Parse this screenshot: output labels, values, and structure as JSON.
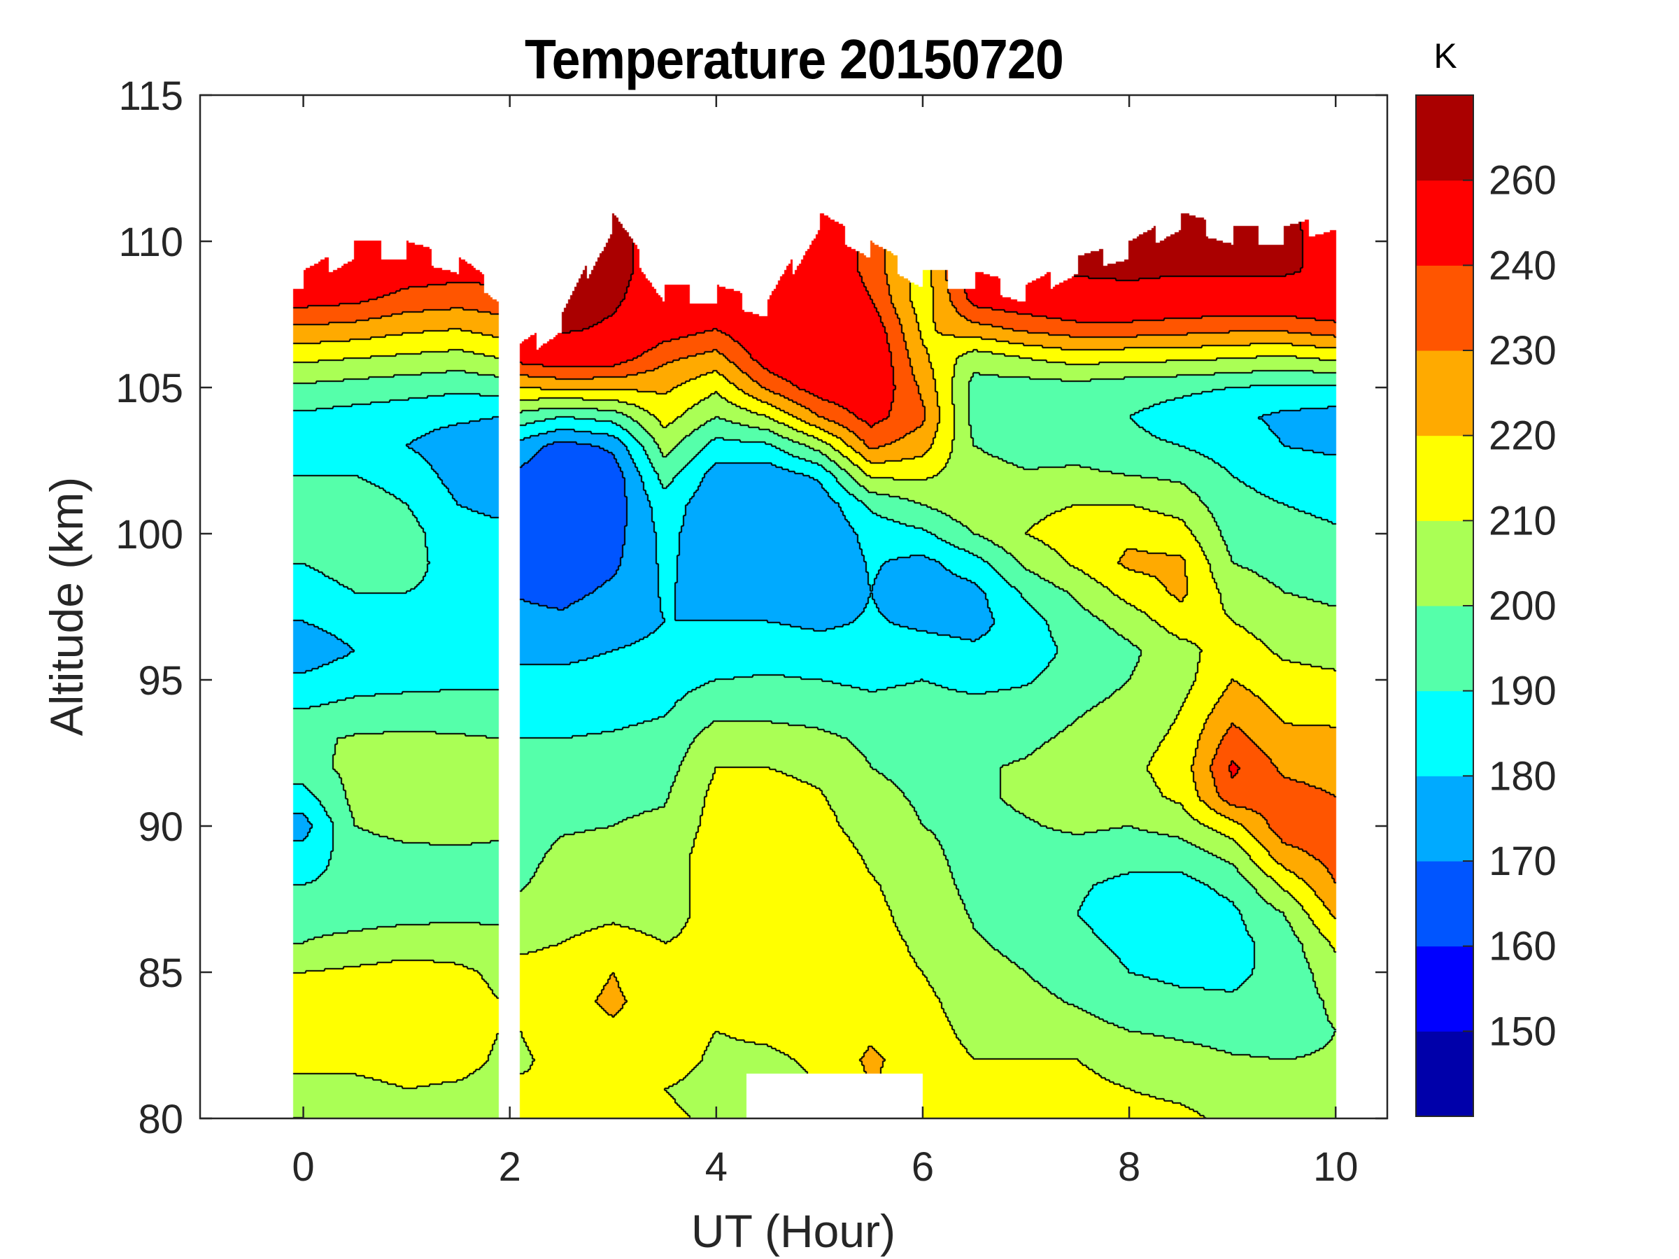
{
  "chart_data": {
    "type": "contourf",
    "title": "Temperature 20150720",
    "xlabel": "UT (Hour)",
    "ylabel": "Altitude (km)",
    "xlim": [
      -1,
      10.5
    ],
    "ylim": [
      80,
      115
    ],
    "xticks": [
      0,
      2,
      4,
      6,
      8,
      10
    ],
    "xtick_labels": [
      "0",
      "2",
      "4",
      "6",
      "8",
      "10"
    ],
    "yticks": [
      80,
      85,
      90,
      95,
      100,
      105,
      110,
      115
    ],
    "ytick_labels": [
      "80",
      "85",
      "90",
      "95",
      "100",
      "105",
      "110",
      "115"
    ],
    "colorbar": {
      "unit_label": "K",
      "range": [
        140,
        270
      ],
      "band_boundaries": [
        140,
        150,
        160,
        170,
        180,
        190,
        200,
        210,
        220,
        230,
        240,
        260,
        270
      ],
      "band_colors": [
        "#0000aa",
        "#0000ff",
        "#0055ff",
        "#00aaff",
        "#00ffff",
        "#55ffaa",
        "#aaff55",
        "#ffff00",
        "#ffaa00",
        "#ff5500",
        "#ff0000",
        "#aa0000"
      ],
      "tick_values": [
        150,
        160,
        170,
        180,
        190,
        200,
        210,
        220,
        230,
        240,
        260
      ],
      "tick_labels": [
        "150",
        "160",
        "170",
        "180",
        "190",
        "200",
        "210",
        "220",
        "230",
        "240",
        "260"
      ]
    },
    "grid": false,
    "contour_line_color": "#000000",
    "field": {
      "x_hours": [
        0,
        0.5,
        1,
        1.5,
        1.9,
        2.1,
        2.5,
        3,
        3.5,
        4,
        4.5,
        5,
        5.5,
        6,
        6.5,
        7,
        7.5,
        8,
        8.5,
        9,
        9.5,
        10
      ],
      "altitude_km": [
        80,
        81,
        82,
        83,
        84,
        85,
        86,
        87,
        88,
        89,
        90,
        91,
        92,
        93,
        94,
        95,
        96,
        97,
        98,
        99,
        100,
        101,
        102,
        103,
        104,
        105,
        106,
        107,
        108,
        109,
        110,
        111
      ],
      "data_gap_hours": [
        1.9,
        2.1
      ],
      "top_altitude_km": [
        109,
        110,
        110,
        109.5,
        108.5,
        106.5,
        107.5,
        111,
        108.5,
        108.5,
        108,
        111,
        110,
        109,
        109,
        108.5,
        109.5,
        110,
        111,
        110.5,
        110.5,
        111
      ],
      "bottom_gap": {
        "hours": [
          4.3,
          6.0
        ],
        "top_altitude_km": 81.5
      },
      "temperature_K": [
        [
          210,
          208,
          212,
          213,
          212,
          210,
          200,
          198,
          190,
          184,
          176,
          186,
          196,
          198,
          190,
          182,
          174,
          180,
          186,
          190,
          194,
          195,
          190,
          184,
          188,
          198,
          212,
          228,
          244,
          256,
          262,
          262
        ],
        [
          205,
          206,
          214,
          216,
          216,
          212,
          202,
          197,
          193,
          195,
          200,
          203,
          203,
          201,
          193,
          186,
          180,
          184,
          190,
          194,
          196,
          195,
          190,
          184,
          186,
          196,
          210,
          226,
          242,
          252,
          258,
          258
        ],
        [
          203,
          210,
          216,
          217,
          217,
          214,
          205,
          197,
          195,
          197,
          204,
          206,
          205,
          202,
          194,
          187,
          184,
          186,
          190,
          193,
          194,
          190,
          186,
          180,
          184,
          194,
          208,
          222,
          236,
          246,
          252,
          252
        ],
        [
          200,
          208,
          215,
          216,
          214,
          212,
          205,
          198,
          196,
          198,
          204,
          205,
          204,
          201,
          194,
          188,
          184,
          186,
          188,
          186,
          183,
          180,
          176,
          174,
          182,
          192,
          206,
          220,
          234,
          244,
          250,
          250
        ],
        [
          202,
          205,
          208,
          210,
          210,
          208,
          203,
          198,
          195,
          197,
          203,
          205,
          203,
          200,
          194,
          188,
          184,
          186,
          186,
          184,
          182,
          178,
          174,
          172,
          180,
          194,
          210,
          224,
          236,
          244,
          248,
          248
        ],
        [
          218,
          212,
          208,
          210,
          212,
          213,
          208,
          203,
          199,
          197,
          195,
          195,
          193,
          190,
          186,
          182,
          178,
          173,
          169,
          167,
          165,
          166,
          168,
          176,
          196,
          220,
          244,
          256,
          262,
          262,
          262,
          262
        ],
        [
          212,
          210,
          214,
          217,
          216,
          214,
          210,
          206,
          204,
          202,
          199,
          196,
          194,
          190,
          186,
          182,
          178,
          172,
          167,
          164,
          162,
          161,
          160,
          166,
          190,
          222,
          248,
          262,
          266,
          266,
          266,
          266
        ],
        [
          214,
          212,
          216,
          218,
          222,
          220,
          214,
          208,
          205,
          203,
          200,
          198,
          195,
          191,
          187,
          183,
          180,
          176,
          172,
          168,
          166,
          164,
          164,
          172,
          194,
          222,
          246,
          258,
          262,
          264,
          264,
          264
        ],
        [
          212,
          210,
          215,
          216,
          214,
          212,
          210,
          206,
          205,
          204,
          202,
          199,
          196,
          193,
          189,
          186,
          182,
          180,
          181,
          182,
          183,
          186,
          194,
          204,
          214,
          222,
          232,
          246,
          252,
          254,
          254,
          254
        ],
        [
          208,
          206,
          208,
          210,
          213,
          214,
          213,
          214,
          215,
          216,
          214,
          213,
          210,
          205,
          197,
          190,
          184,
          180,
          176,
          174,
          173,
          172,
          176,
          186,
          200,
          212,
          226,
          240,
          248,
          250,
          250,
          250
        ],
        [
          205,
          204,
          208,
          212,
          214,
          216,
          217,
          218,
          220,
          220,
          218,
          215,
          210,
          204,
          197,
          191,
          186,
          180,
          175,
          172,
          170,
          170,
          174,
          188,
          210,
          232,
          246,
          252,
          256,
          258,
          258,
          258
        ],
        [
          210,
          210,
          212,
          214,
          213,
          212,
          213,
          215,
          217,
          218,
          214,
          211,
          207,
          202,
          196,
          190,
          184,
          178,
          174,
          171,
          170,
          173,
          182,
          204,
          230,
          246,
          254,
          256,
          254,
          252,
          252,
          252
        ],
        [
          215,
          220,
          222,
          218,
          214,
          212,
          212,
          212,
          211,
          208,
          204,
          202,
          200,
          198,
          193,
          188,
          184,
          181,
          180,
          181,
          184,
          192,
          212,
          232,
          244,
          250,
          252,
          248,
          240,
          236,
          236,
          236
        ],
        [
          216,
          216,
          214,
          213,
          212,
          210,
          209,
          207,
          205,
          203,
          200,
          199,
          198,
          197,
          194,
          190,
          184,
          178,
          174,
          177,
          188,
          200,
          212,
          224,
          232,
          228,
          222,
          218,
          214,
          214,
          214,
          214
        ],
        [
          214,
          212,
          210,
          208,
          206,
          204,
          201,
          199,
          197,
          196,
          197,
          198,
          199,
          197,
          193,
          187,
          182,
          176,
          177,
          186,
          200,
          208,
          204,
          200,
          196,
          196,
          204,
          226,
          244,
          250,
          250,
          250
        ],
        [
          215,
          213,
          210,
          206,
          203,
          200,
          197,
          195,
          194,
          195,
          199,
          202,
          201,
          198,
          194,
          189,
          185,
          186,
          192,
          202,
          210,
          207,
          201,
          196,
          193,
          195,
          210,
          232,
          248,
          255,
          255,
          255
        ],
        [
          214,
          212,
          210,
          204,
          199,
          195,
          192,
          190,
          191,
          195,
          202,
          206,
          205,
          202,
          199,
          195,
          193,
          196,
          202,
          212,
          216,
          210,
          202,
          196,
          193,
          196,
          214,
          236,
          252,
          262,
          262,
          262
        ],
        [
          213,
          210,
          207,
          200,
          194,
          190,
          188,
          186,
          188,
          193,
          200,
          206,
          208,
          206,
          203,
          200,
          198,
          204,
          214,
          222,
          218,
          210,
          200,
          192,
          190,
          194,
          212,
          236,
          252,
          264,
          266,
          266
        ],
        [
          212,
          208,
          204,
          198,
          192,
          188,
          185,
          184,
          187,
          194,
          204,
          212,
          214,
          212,
          210,
          206,
          206,
          216,
          222,
          222,
          214,
          206,
          198,
          190,
          186,
          192,
          212,
          234,
          250,
          262,
          266,
          266
        ],
        [
          208,
          205,
          201,
          196,
          191,
          188,
          187,
          188,
          193,
          203,
          216,
          236,
          242,
          234,
          226,
          220,
          216,
          210,
          206,
          200,
          196,
          193,
          190,
          185,
          182,
          190,
          210,
          232,
          250,
          262,
          266,
          266
        ],
        [
          205,
          204,
          200,
          196,
          194,
          193,
          194,
          200,
          212,
          226,
          236,
          234,
          228,
          222,
          218,
          214,
          208,
          204,
          200,
          196,
          193,
          190,
          186,
          180,
          178,
          188,
          208,
          232,
          250,
          262,
          266,
          266
        ],
        [
          200,
          202,
          201,
          200,
          202,
          206,
          212,
          222,
          230,
          234,
          234,
          230,
          226,
          222,
          217,
          212,
          206,
          202,
          198,
          194,
          191,
          188,
          184,
          178,
          176,
          188,
          212,
          236,
          252,
          256,
          250,
          246
        ]
      ]
    }
  }
}
